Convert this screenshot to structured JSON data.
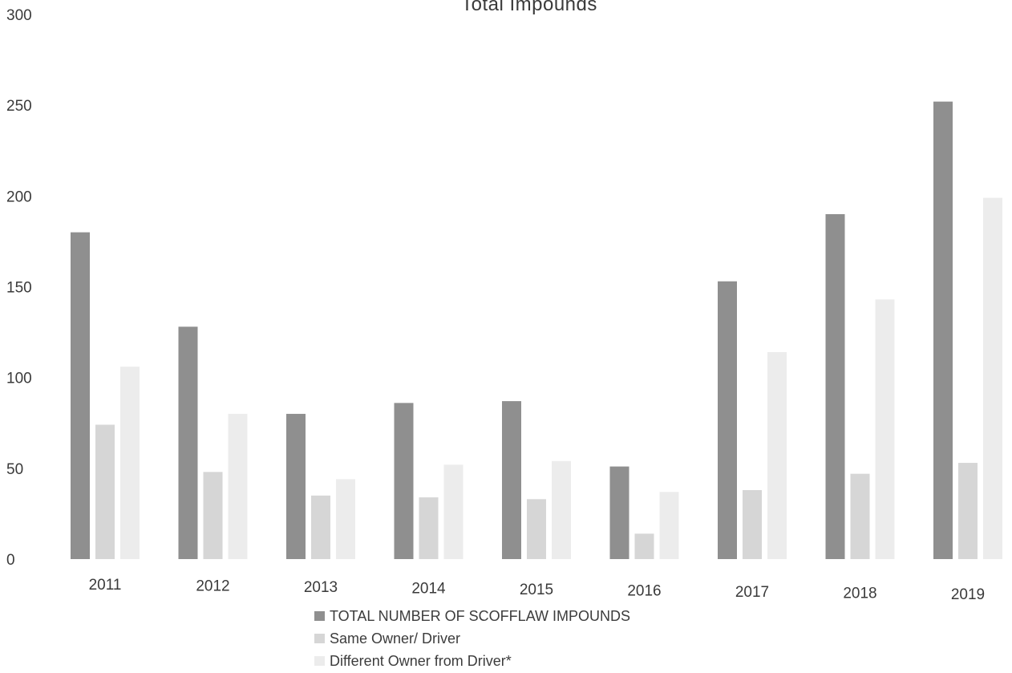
{
  "chart_data": {
    "type": "bar",
    "title": "Total Impounds",
    "categories": [
      "2011",
      "2012",
      "2013",
      "2014",
      "2015",
      "2016",
      "2017",
      "2018",
      "2019"
    ],
    "series": [
      {
        "name": "TOTAL NUMBER OF SCOFFLAW IMPOUNDS",
        "color": "#8f8f8f",
        "values": [
          180,
          128,
          80,
          86,
          87,
          51,
          153,
          190,
          252
        ]
      },
      {
        "name": "Same Owner/ Driver",
        "color": "#d6d6d6",
        "values": [
          74,
          48,
          35,
          34,
          33,
          14,
          38,
          47,
          53
        ]
      },
      {
        "name": "Different Owner from Driver*",
        "color": "#ececec",
        "values": [
          106,
          80,
          44,
          52,
          54,
          37,
          114,
          143,
          199
        ]
      }
    ],
    "y_ticks": [
      "0",
      "50",
      "100",
      "150",
      "200",
      "250",
      "300"
    ],
    "ylim": [
      0,
      300
    ],
    "xlabel": "",
    "ylabel": "",
    "grid": false,
    "legend_position": "bottom"
  }
}
